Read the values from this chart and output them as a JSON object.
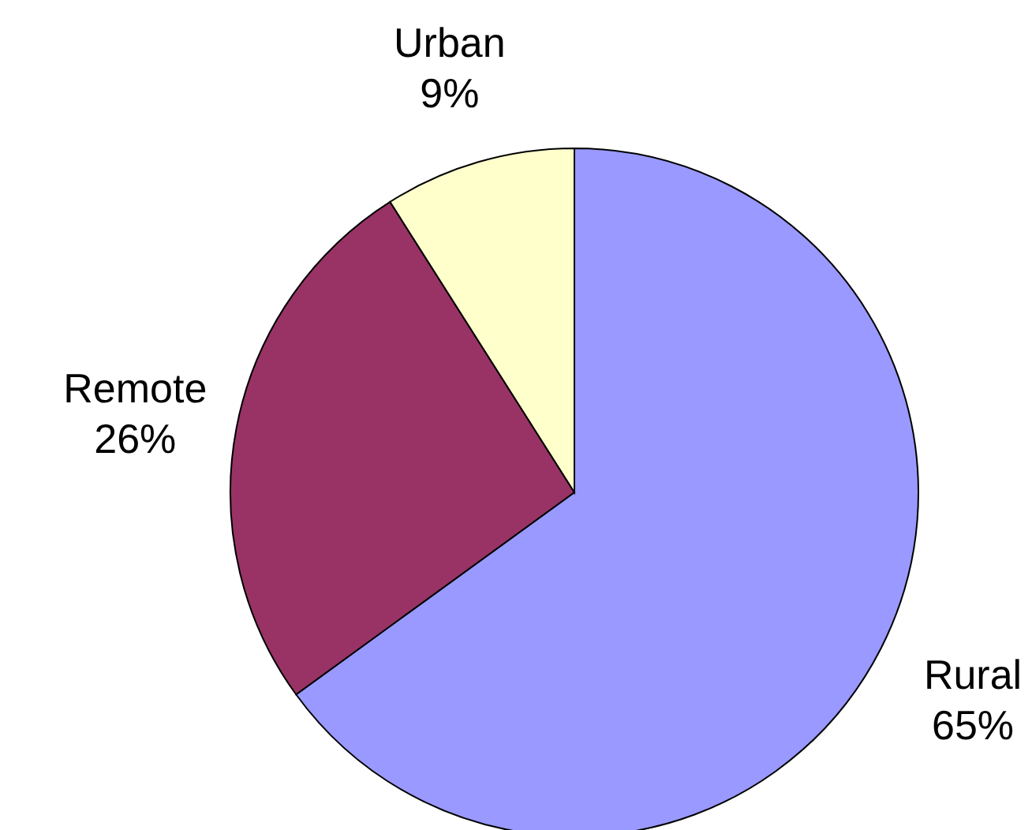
{
  "chart_data": {
    "type": "pie",
    "categories": [
      "Rural",
      "Remote",
      "Urban"
    ],
    "values": [
      65,
      26,
      9
    ],
    "colors": [
      "#9999ff",
      "#993366",
      "#ffffcc"
    ],
    "value_labels": [
      "65%",
      "26%",
      "9%"
    ]
  }
}
